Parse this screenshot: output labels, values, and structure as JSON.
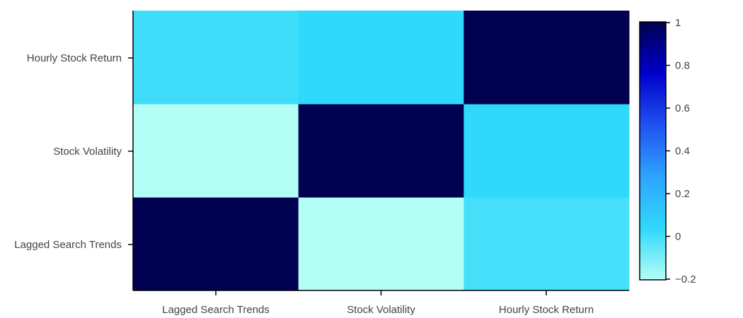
{
  "chart_data": {
    "type": "heatmap",
    "x_categories": [
      "Lagged Search Trends",
      "Stock Volatility",
      "Hourly Stock Return"
    ],
    "y_categories": [
      "Lagged Search Trends",
      "Stock Volatility",
      "Hourly Stock Return"
    ],
    "values": [
      [
        1.0,
        -0.2,
        0.0
      ],
      [
        -0.2,
        1.0,
        0.04
      ],
      [
        0.01,
        0.04,
        1.0
      ]
    ],
    "zlim": [
      -0.2,
      1.0
    ],
    "colorbar": {
      "ticks": [
        1,
        0.8,
        0.6,
        0.4,
        0.2,
        0,
        -0.2
      ],
      "tick_labels": [
        "1",
        "0.8",
        "0.6",
        "0.4",
        "0.2",
        "0",
        "−0.2"
      ],
      "colors": [
        "#b3fff6",
        "#30d8fb",
        "#2ea4ff",
        "#1f52f0",
        "#0000cc",
        "#000050"
      ]
    },
    "title": "",
    "xlabel": "",
    "ylabel": ""
  }
}
